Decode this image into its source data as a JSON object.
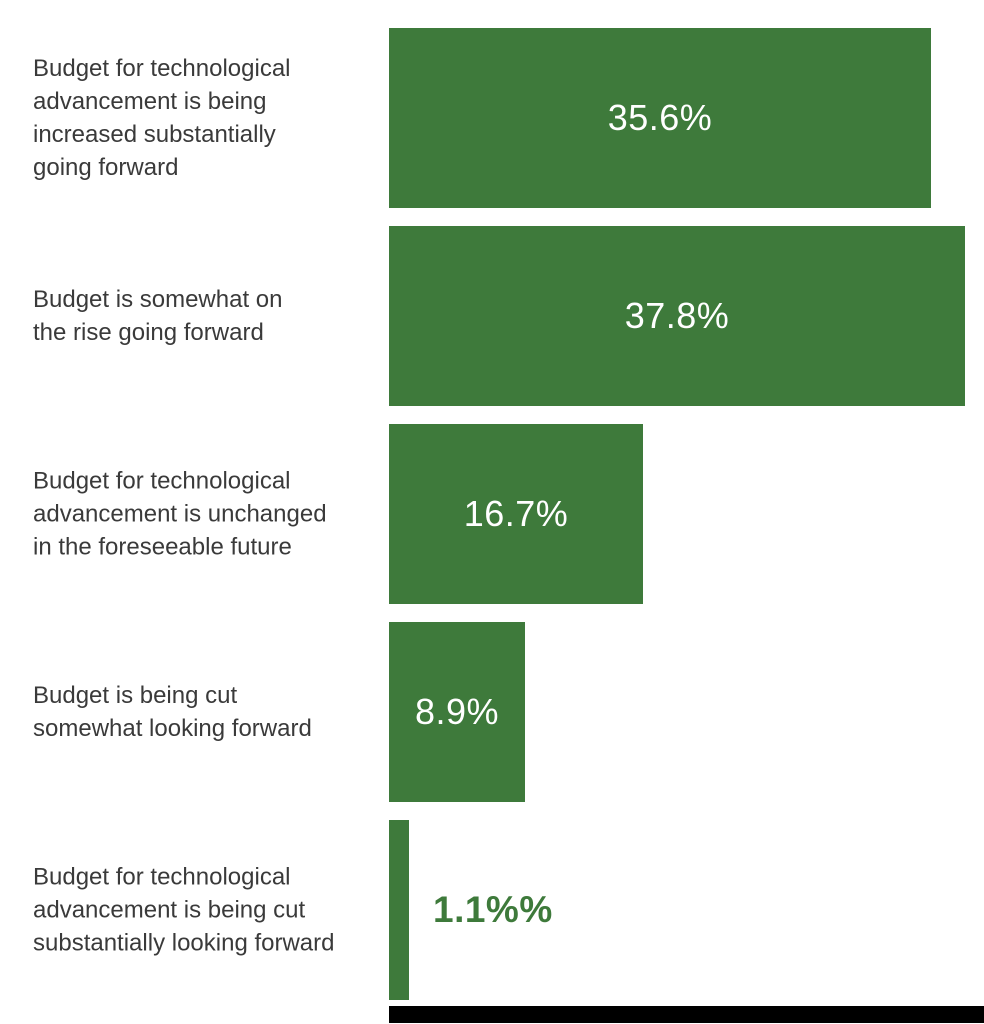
{
  "chart_data": {
    "type": "bar",
    "orientation": "horizontal",
    "title": "",
    "xlabel": "",
    "ylabel": "",
    "grid": false,
    "legend": false,
    "xlim": [
      0,
      37.8
    ],
    "categories": [
      "Budget for technological advancement is being increased substantially going forward",
      "Budget is somewhat on the rise going forward",
      "Budget for technological advancement is unchanged in the foreseeable future",
      "Budget is being cut somewhat looking forward",
      "Budget for technological advancement is being cut substantially looking forward"
    ],
    "values": [
      35.6,
      37.8,
      16.7,
      8.9,
      1.1
    ],
    "colors": {
      "bar_fill": "#3E7A3B",
      "value_label_inside": "#FFFFFF",
      "value_label_outside": "#3E7A3B",
      "category_label": "#3A3A3A",
      "bottom_strip": "#000000",
      "background": "#FFFFFF"
    },
    "rows": [
      {
        "label": "Budget for technological\nadvancement is being\nincreased substantially\ngoing forward",
        "value": 35.6,
        "value_label": "35.6%",
        "value_label_position": "inside"
      },
      {
        "label": "Budget is somewhat on\nthe rise going forward",
        "value": 37.8,
        "value_label": "37.8%",
        "value_label_position": "inside"
      },
      {
        "label": "Budget for technological\nadvancement is unchanged\nin the foreseeable future",
        "value": 16.7,
        "value_label": "16.7%",
        "value_label_position": "inside"
      },
      {
        "label": "Budget is being cut\nsomewhat looking forward",
        "value": 8.9,
        "value_label": "8.9%",
        "value_label_position": "inside"
      },
      {
        "label": "Budget for technological\nadvancement is being cut\nsubstantially looking forward",
        "value": 1.1,
        "value_label": "1.1%%",
        "value_label_position": "outside"
      }
    ]
  }
}
